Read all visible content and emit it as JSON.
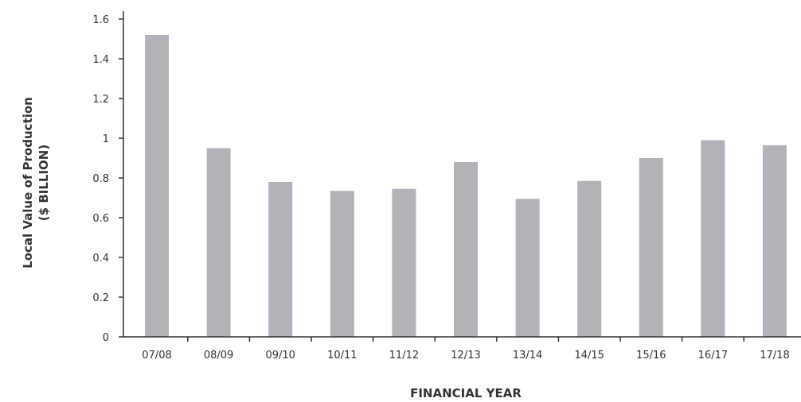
{
  "chart_data": {
    "type": "bar",
    "categories": [
      "07/08",
      "08/09",
      "09/10",
      "10/11",
      "11/12",
      "12/13",
      "13/14",
      "14/15",
      "15/16",
      "16/17",
      "17/18"
    ],
    "values": [
      1.52,
      0.95,
      0.78,
      0.735,
      0.745,
      0.88,
      0.695,
      0.785,
      0.9,
      0.99,
      0.965
    ],
    "title": "",
    "xlabel": "FINANCIAL YEAR",
    "ylabel_lines": [
      "Local Value of Production",
      "($ BILLION)"
    ],
    "ylim": [
      0,
      1.6
    ],
    "yticks": [
      0,
      0.2,
      0.4,
      0.6,
      0.8,
      1,
      1.2,
      1.4,
      1.6
    ],
    "ytick_labels": [
      "0",
      "0.2",
      "0.4",
      "0.6",
      "0.8",
      "1",
      "1.2",
      "1.4",
      "1.6"
    ],
    "grid": false,
    "legend": "none",
    "bar_color": "#b2b3b8",
    "axis_color": "#333333"
  }
}
